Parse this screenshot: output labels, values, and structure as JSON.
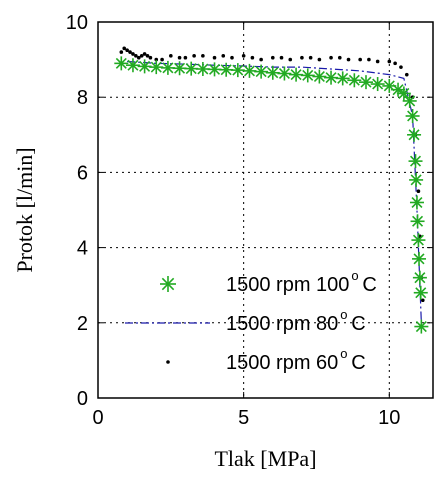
{
  "chart_data": {
    "type": "scatter",
    "xlabel": "Tlak [MPa]",
    "ylabel": "Protok [l/min]",
    "xlim": [
      0,
      11.5
    ],
    "ylim": [
      0,
      10
    ],
    "xticks": [
      "0",
      "5",
      "10"
    ],
    "yticks": [
      "0",
      "2",
      "4",
      "6",
      "8",
      "10"
    ],
    "grid": true,
    "legend_placement": "bottom-right",
    "series": [
      {
        "name": "1500 rpm 100",
        "unit": "C",
        "marker": "asterisk",
        "color": "#22aa22",
        "x": [
          0.8,
          1.2,
          1.6,
          2.0,
          2.4,
          2.8,
          3.2,
          3.6,
          4.0,
          4.4,
          4.8,
          5.2,
          5.6,
          6.0,
          6.4,
          6.8,
          7.2,
          7.6,
          8.0,
          8.4,
          8.8,
          9.2,
          9.6,
          10.0,
          10.3,
          10.5,
          10.7,
          10.8,
          10.85,
          10.9,
          10.92,
          10.95,
          10.97,
          11.0,
          11.02,
          11.05,
          11.08,
          11.1
        ],
        "y": [
          8.9,
          8.85,
          8.82,
          8.8,
          8.78,
          8.77,
          8.76,
          8.75,
          8.74,
          8.73,
          8.72,
          8.7,
          8.68,
          8.65,
          8.63,
          8.6,
          8.58,
          8.55,
          8.52,
          8.5,
          8.45,
          8.4,
          8.35,
          8.3,
          8.2,
          8.1,
          7.9,
          7.5,
          7.0,
          6.3,
          5.8,
          5.2,
          4.7,
          4.2,
          3.7,
          3.2,
          2.8,
          1.9
        ]
      },
      {
        "name": "1500 rpm 80",
        "unit": "C",
        "marker": "dashdot",
        "color": "#1a1aaa",
        "x": [
          1.0,
          2.0,
          3.0,
          4.0,
          5.0,
          6.0,
          7.0,
          8.0,
          9.0,
          10.0,
          10.5,
          10.8,
          10.95,
          11.05,
          11.1
        ],
        "y": [
          8.95,
          8.9,
          8.88,
          8.85,
          8.83,
          8.8,
          8.8,
          8.75,
          8.7,
          8.6,
          8.5,
          7.5,
          5.0,
          3.0,
          2.0
        ]
      },
      {
        "name": "1500 rpm 60",
        "unit": "C",
        "marker": "dot",
        "color": "#000000",
        "x": [
          0.8,
          0.9,
          1.0,
          1.1,
          1.2,
          1.3,
          1.4,
          1.5,
          1.6,
          1.7,
          1.8,
          2.0,
          2.2,
          2.5,
          2.8,
          3.0,
          3.3,
          3.6,
          4.0,
          4.3,
          4.6,
          5.0,
          5.3,
          5.6,
          6.0,
          6.3,
          6.6,
          7.0,
          7.3,
          7.6,
          8.0,
          8.3,
          8.6,
          9.0,
          9.3,
          9.6,
          10.0,
          10.2,
          10.4,
          10.6,
          10.8,
          10.9,
          11.0,
          11.05,
          11.1,
          11.15
        ],
        "y": [
          9.2,
          9.3,
          9.25,
          9.2,
          9.15,
          9.1,
          9.05,
          9.1,
          9.15,
          9.1,
          9.05,
          9.0,
          9.0,
          9.1,
          9.05,
          9.05,
          9.1,
          9.1,
          9.05,
          9.1,
          9.05,
          9.1,
          9.05,
          9.0,
          9.05,
          9.05,
          9.0,
          9.05,
          9.05,
          9.0,
          9.05,
          9.05,
          9.0,
          9.0,
          9.0,
          8.95,
          8.95,
          8.9,
          8.8,
          8.6,
          8.0,
          7.0,
          5.5,
          4.3,
          3.2,
          2.6
        ]
      }
    ]
  }
}
